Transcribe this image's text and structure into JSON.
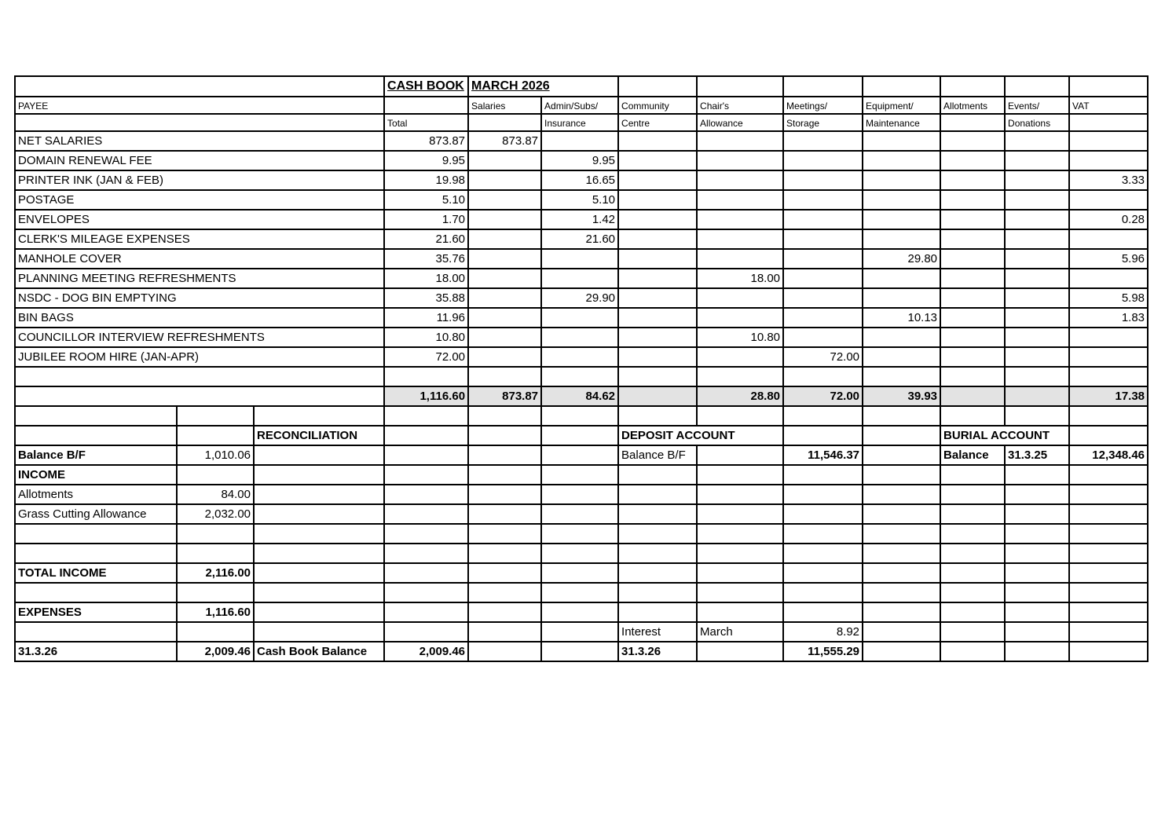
{
  "header": {
    "title": "CASH BOOK",
    "period": "MARCH 2026",
    "payee_label": "PAYEE",
    "columns_line1": [
      "",
      "Salaries",
      "Admin/Subs/",
      "Community",
      "Chair's",
      "Meetings/",
      "Equipment/",
      "Allotments",
      "Events/",
      "VAT"
    ],
    "columns_line2": [
      "Total",
      "",
      "Insurance",
      "Centre",
      "Allowance",
      "Storage",
      "Maintenance",
      "",
      "Donations",
      ""
    ]
  },
  "items": [
    {
      "payee": "NET SALARIES",
      "values": [
        "873.87",
        "873.87",
        "",
        "",
        "",
        "",
        "",
        "",
        "",
        ""
      ]
    },
    {
      "payee": "DOMAIN RENEWAL FEE",
      "values": [
        "9.95",
        "",
        "9.95",
        "",
        "",
        "",
        "",
        "",
        "",
        ""
      ]
    },
    {
      "payee": "PRINTER INK (JAN & FEB)",
      "values": [
        "19.98",
        "",
        "16.65",
        "",
        "",
        "",
        "",
        "",
        "",
        "3.33"
      ]
    },
    {
      "payee": "POSTAGE",
      "values": [
        "5.10",
        "",
        "5.10",
        "",
        "",
        "",
        "",
        "",
        "",
        ""
      ]
    },
    {
      "payee": "ENVELOPES",
      "values": [
        "1.70",
        "",
        "1.42",
        "",
        "",
        "",
        "",
        "",
        "",
        "0.28"
      ]
    },
    {
      "payee": "CLERK'S MILEAGE EXPENSES",
      "values": [
        "21.60",
        "",
        "21.60",
        "",
        "",
        "",
        "",
        "",
        "",
        ""
      ]
    },
    {
      "payee": "MANHOLE COVER",
      "values": [
        "35.76",
        "",
        "",
        "",
        "",
        "",
        "29.80",
        "",
        "",
        "5.96"
      ]
    },
    {
      "payee": "PLANNING MEETING REFRESHMENTS",
      "values": [
        "18.00",
        "",
        "",
        "",
        "18.00",
        "",
        "",
        "",
        "",
        ""
      ]
    },
    {
      "payee": "NSDC - DOG BIN EMPTYING",
      "values": [
        "35.88",
        "",
        "29.90",
        "",
        "",
        "",
        "",
        "",
        "",
        "5.98"
      ]
    },
    {
      "payee": "BIN BAGS",
      "values": [
        "11.96",
        "",
        "",
        "",
        "",
        "",
        "10.13",
        "",
        "",
        "1.83"
      ]
    },
    {
      "payee": "COUNCILLOR INTERVIEW REFRESHMENTS",
      "values": [
        "10.80",
        "",
        "",
        "",
        "10.80",
        "",
        "",
        "",
        "",
        ""
      ]
    },
    {
      "payee": "JUBILEE ROOM HIRE (JAN-APR)",
      "values": [
        "72.00",
        "",
        "",
        "",
        "",
        "72.00",
        "",
        "",
        "",
        ""
      ]
    },
    {
      "payee": "",
      "values": [
        "",
        "",
        "",
        "",
        "",
        "",
        "",
        "",
        "",
        ""
      ]
    }
  ],
  "totals": [
    "1,116.60",
    "873.87",
    "84.62",
    "",
    "28.80",
    "72.00",
    "39.93",
    "",
    "",
    "17.38"
  ],
  "lower": [
    [
      "",
      "",
      "",
      "",
      "",
      "",
      "",
      "",
      "",
      "",
      "",
      "",
      ""
    ],
    [
      "",
      "",
      "RECONCILIATION",
      "",
      "",
      "",
      "DEPOSIT ACCOUNT",
      "",
      "",
      "",
      "BURIAL ACCOUNT",
      "",
      ""
    ],
    [
      "Balance B/F",
      "1,010.06",
      "",
      "",
      "",
      "",
      "Balance B/F",
      "",
      "11,546.37",
      "",
      "Balance",
      "31.3.25",
      "12,348.46"
    ],
    [
      "INCOME",
      "",
      "",
      "",
      "",
      "",
      "",
      "",
      "",
      "",
      "",
      "",
      ""
    ],
    [
      "Allotments",
      "84.00",
      "",
      "",
      "",
      "",
      "",
      "",
      "",
      "",
      "",
      "",
      ""
    ],
    [
      "Grass Cutting Allowance",
      "2,032.00",
      "",
      "",
      "",
      "",
      "",
      "",
      "",
      "",
      "",
      "",
      ""
    ],
    [
      "",
      "",
      "",
      "",
      "",
      "",
      "",
      "",
      "",
      "",
      "",
      "",
      ""
    ],
    [
      "",
      "",
      "",
      "",
      "",
      "",
      "",
      "",
      "",
      "",
      "",
      "",
      ""
    ],
    [
      "TOTAL INCOME",
      "2,116.00",
      "",
      "",
      "",
      "",
      "",
      "",
      "",
      "",
      "",
      "",
      ""
    ],
    [
      "",
      "",
      "",
      "",
      "",
      "",
      "",
      "",
      "",
      "",
      "",
      "",
      ""
    ],
    [
      "EXPENSES",
      "1,116.60",
      "",
      "",
      "",
      "",
      "",
      "",
      "",
      "",
      "",
      "",
      ""
    ],
    [
      "",
      "",
      "",
      "",
      "",
      "",
      "Interest",
      "March",
      "8.92",
      "",
      "",
      "",
      ""
    ],
    [
      "31.3.26",
      "2,009.46",
      "Cash Book Balance",
      "2,009.46",
      "",
      "",
      "31.3.26",
      "",
      "11,555.29",
      "",
      "",
      "",
      ""
    ]
  ]
}
